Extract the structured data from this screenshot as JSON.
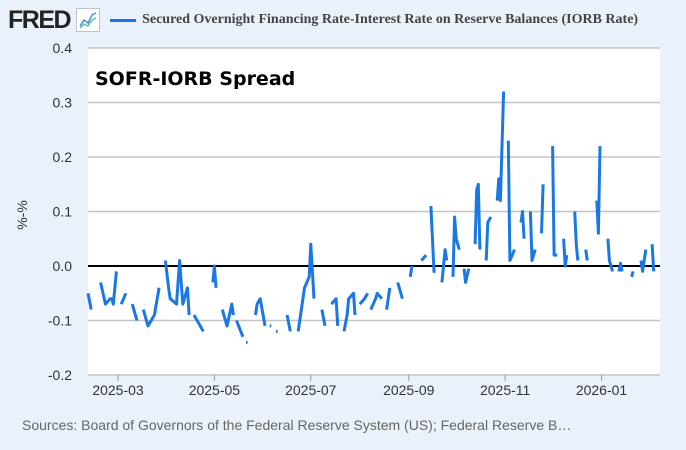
{
  "header": {
    "logo": "FRED",
    "legend_label": "Secured Overnight Financing Rate-Interest Rate on Reserve Balances (IORB Rate)"
  },
  "source": "Sources: Board of Governors of the Federal Reserve System (US); Federal Reserve B…",
  "chart_data": {
    "type": "line",
    "title": "SOFR-IORB Spread",
    "xlabel": "",
    "ylabel": "%-%",
    "ylim": [
      -0.2,
      0.4
    ],
    "xlim": [
      "2025-02-10",
      "2026-02-07"
    ],
    "yticks": [
      {
        "value": 0.4,
        "label": "0.4"
      },
      {
        "value": 0.3,
        "label": "0.3"
      },
      {
        "value": 0.2,
        "label": "0.2"
      },
      {
        "value": 0.1,
        "label": "0.1"
      },
      {
        "value": 0.0,
        "label": "0.0"
      },
      {
        "value": -0.1,
        "label": "-0.1"
      },
      {
        "value": -0.2,
        "label": "-0.2"
      }
    ],
    "xticks": [
      {
        "date": "2025-03-01",
        "label": "2025-03"
      },
      {
        "date": "2025-05-01",
        "label": "2025-05"
      },
      {
        "date": "2025-07-01",
        "label": "2025-07"
      },
      {
        "date": "2025-09-01",
        "label": "2025-09"
      },
      {
        "date": "2025-11-01",
        "label": "2025-11"
      },
      {
        "date": "2026-01-01",
        "label": "2026-01"
      }
    ],
    "grid": true,
    "color": "#1a78e6",
    "zero_line_color": "#000000",
    "series": [
      {
        "name": "Secured Overnight Financing Rate-Interest Rate on Reserve Balances (IORB Rate)",
        "segments": [
          [
            [
              "2025-02-10",
              -0.05
            ],
            [
              "2025-02-12",
              -0.08
            ]
          ],
          [
            [
              "2025-02-18",
              -0.03
            ],
            [
              "2025-02-21",
              -0.07
            ],
            [
              "2025-02-24",
              -0.06
            ],
            [
              "2025-02-25",
              -0.06
            ],
            [
              "2025-02-26",
              -0.07
            ],
            [
              "2025-02-28",
              -0.01
            ]
          ],
          [
            [
              "2025-03-03",
              -0.07
            ],
            [
              "2025-03-06",
              -0.05
            ]
          ],
          [
            [
              "2025-03-10",
              -0.07
            ],
            [
              "2025-03-13",
              -0.1
            ]
          ],
          [
            [
              "2025-03-17",
              -0.08
            ],
            [
              "2025-03-20",
              -0.11
            ],
            [
              "2025-03-24",
              -0.09
            ],
            [
              "2025-03-27",
              -0.04
            ]
          ],
          [
            [
              "2025-03-31",
              0.01
            ],
            [
              "2025-04-02",
              -0.04
            ],
            [
              "2025-04-03",
              -0.06
            ],
            [
              "2025-04-07",
              -0.07
            ],
            [
              "2025-04-09",
              0.01
            ],
            [
              "2025-04-11",
              -0.07
            ],
            [
              "2025-04-14",
              -0.04
            ],
            [
              "2025-04-15",
              -0.09
            ]
          ],
          [
            [
              "2025-04-18",
              -0.09
            ],
            [
              "2025-04-22",
              -0.11
            ],
            [
              "2025-04-24",
              -0.12
            ]
          ],
          [
            [
              "2025-04-30",
              -0.03
            ],
            [
              "2025-05-01",
              0.0
            ],
            [
              "2025-05-02",
              -0.04
            ]
          ],
          [
            [
              "2025-05-06",
              -0.08
            ],
            [
              "2025-05-09",
              -0.11
            ],
            [
              "2025-05-12",
              -0.07
            ],
            [
              "2025-05-13",
              -0.09
            ]
          ],
          [
            [
              "2025-05-15",
              -0.1
            ],
            [
              "2025-05-19",
              -0.13
            ]
          ],
          [
            [
              "2025-05-21",
              -0.14
            ],
            [
              "2025-05-22",
              -0.14
            ]
          ],
          [
            [
              "2025-05-27",
              -0.09
            ],
            [
              "2025-05-28",
              -0.07
            ],
            [
              "2025-05-30",
              -0.06
            ],
            [
              "2025-06-02",
              -0.11
            ]
          ],
          [
            [
              "2025-06-05",
              -0.11
            ],
            [
              "2025-06-06",
              -0.11
            ]
          ],
          [
            [
              "2025-06-09",
              -0.12
            ],
            [
              "2025-06-10",
              -0.12
            ]
          ],
          [
            [
              "2025-06-16",
              -0.09
            ],
            [
              "2025-06-18",
              -0.12
            ]
          ],
          [
            [
              "2025-06-23",
              -0.12
            ],
            [
              "2025-06-27",
              -0.04
            ],
            [
              "2025-06-30",
              -0.02
            ],
            [
              "2025-07-01",
              0.04
            ],
            [
              "2025-07-03",
              -0.06
            ]
          ],
          [
            [
              "2025-07-08",
              -0.08
            ],
            [
              "2025-07-10",
              -0.11
            ]
          ],
          [
            [
              "2025-07-14",
              -0.07
            ],
            [
              "2025-07-17",
              -0.06
            ],
            [
              "2025-07-18",
              -0.11
            ]
          ],
          [
            [
              "2025-07-22",
              -0.12
            ],
            [
              "2025-07-24",
              -0.09
            ],
            [
              "2025-07-25",
              -0.06
            ],
            [
              "2025-07-28",
              -0.05
            ],
            [
              "2025-07-29",
              -0.09
            ]
          ],
          [
            [
              "2025-08-01",
              -0.07
            ],
            [
              "2025-08-04",
              -0.06
            ],
            [
              "2025-08-06",
              -0.05
            ]
          ],
          [
            [
              "2025-08-08",
              -0.08
            ],
            [
              "2025-08-11",
              -0.06
            ],
            [
              "2025-08-12",
              -0.05
            ],
            [
              "2025-08-15",
              -0.06
            ]
          ],
          [
            [
              "2025-08-18",
              -0.08
            ],
            [
              "2025-08-20",
              -0.04
            ]
          ],
          [
            [
              "2025-08-25",
              -0.03
            ],
            [
              "2025-08-28",
              -0.06
            ]
          ],
          [
            [
              "2025-09-02",
              -0.02
            ],
            [
              "2025-09-03",
              0.0
            ]
          ],
          [
            [
              "2025-09-09",
              0.01
            ],
            [
              "2025-09-12",
              0.02
            ]
          ],
          [
            [
              "2025-09-15",
              0.11
            ],
            [
              "2025-09-17",
              -0.01
            ],
            [
              "2025-09-18",
              -0.01
            ]
          ],
          [
            [
              "2025-09-22",
              -0.03
            ],
            [
              "2025-09-24",
              0.03
            ],
            [
              "2025-09-25",
              0.01
            ]
          ],
          [
            [
              "2025-09-29",
              -0.02
            ],
            [
              "2025-09-30",
              0.09
            ],
            [
              "2025-10-01",
              0.05
            ],
            [
              "2025-10-03",
              0.03
            ]
          ],
          [
            [
              "2025-10-06",
              -0.005
            ],
            [
              "2025-10-07",
              -0.03
            ],
            [
              "2025-10-09",
              -0.005
            ]
          ],
          [
            [
              "2025-10-13",
              0.04
            ],
            [
              "2025-10-14",
              0.14
            ],
            [
              "2025-10-15",
              0.15
            ],
            [
              "2025-10-16",
              0.03
            ]
          ],
          [
            [
              "2025-10-20",
              0.01
            ],
            [
              "2025-10-21",
              0.08
            ],
            [
              "2025-10-23",
              0.09
            ]
          ],
          [
            [
              "2025-10-27",
              0.12
            ],
            [
              "2025-10-28",
              0.16
            ],
            [
              "2025-10-29",
              0.12
            ],
            [
              "2025-10-31",
              0.32
            ]
          ],
          [
            [
              "2025-11-03",
              0.23
            ],
            [
              "2025-11-04",
              0.01
            ],
            [
              "2025-11-07",
              0.03
            ]
          ],
          [
            [
              "2025-11-11",
              0.08
            ],
            [
              "2025-11-12",
              0.1
            ],
            [
              "2025-11-13",
              0.05
            ]
          ],
          [
            [
              "2025-11-17",
              0.1
            ],
            [
              "2025-11-18",
              0.01
            ],
            [
              "2025-11-20",
              0.03
            ]
          ],
          [
            [
              "2025-11-24",
              0.06
            ],
            [
              "2025-11-25",
              0.15
            ]
          ],
          [
            [
              "2025-12-01",
              0.22
            ],
            [
              "2025-12-02",
              0.02
            ],
            [
              "2025-12-04",
              0.02
            ]
          ],
          [
            [
              "2025-12-08",
              0.05
            ],
            [
              "2025-12-09",
              0.0
            ],
            [
              "2025-12-10",
              0.02
            ]
          ],
          [
            [
              "2025-12-15",
              0.1
            ],
            [
              "2025-12-16",
              0.04
            ],
            [
              "2025-12-17",
              0.01
            ]
          ],
          [
            [
              "2025-12-22",
              0.03
            ],
            [
              "2025-12-23",
              0.01
            ]
          ],
          [
            [
              "2025-12-29",
              0.12
            ],
            [
              "2025-12-30",
              0.06
            ],
            [
              "2025-12-31",
              0.22
            ]
          ],
          [
            [
              "2026-01-05",
              0.05
            ],
            [
              "2026-01-06",
              0.01
            ],
            [
              "2026-01-08",
              -0.01
            ]
          ],
          [
            [
              "2026-01-12",
              -0.01
            ],
            [
              "2026-01-13",
              0.005
            ],
            [
              "2026-01-14",
              -0.01
            ]
          ],
          [
            [
              "2026-01-20",
              -0.02
            ],
            [
              "2026-01-21",
              -0.01
            ]
          ],
          [
            [
              "2026-01-26",
              0.01
            ],
            [
              "2026-01-27",
              -0.01
            ],
            [
              "2026-01-29",
              0.03
            ]
          ],
          [
            [
              "2026-02-02",
              0.04
            ],
            [
              "2026-02-03",
              -0.01
            ]
          ]
        ]
      }
    ]
  }
}
